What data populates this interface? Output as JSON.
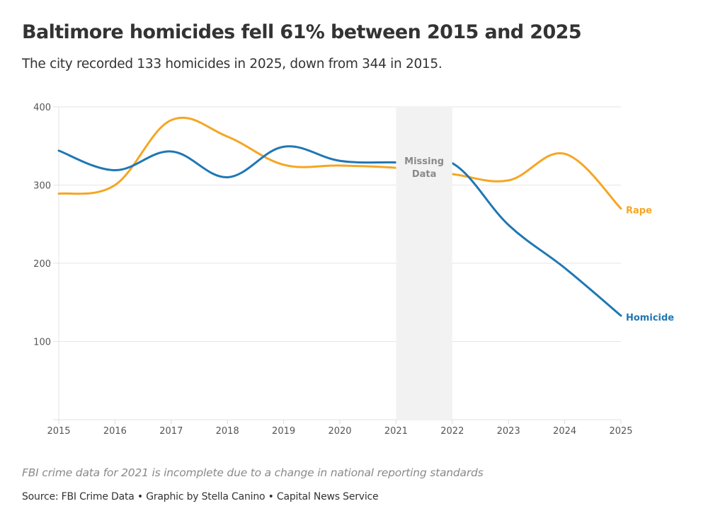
{
  "header": {
    "title": "Baltimore homicides fell 61% between 2015 and 2025",
    "subtitle": "The city recorded 133 homicides in 2025, down from 344 in 2015."
  },
  "footer": {
    "note": "FBI crime data for 2021 is incomplete due to a change in national reporting standards",
    "source": "Source: FBI Crime Data • Graphic by Stella Canino • Capital News Service"
  },
  "chart_data": {
    "type": "line",
    "title": "Baltimore homicides fell 61% between 2015 and 2025",
    "subtitle": "The city recorded 133 homicides in 2025, down from 344 in 2015.",
    "xlabel": "",
    "ylabel": "",
    "x": [
      2015,
      2016,
      2017,
      2018,
      2019,
      2020,
      2021,
      2022,
      2023,
      2024,
      2025
    ],
    "x_tick_labels": [
      "2015",
      "2016",
      "2017",
      "2018",
      "2019",
      "2020",
      "2021",
      "2022",
      "2023",
      "2024",
      "2025"
    ],
    "ylim": [
      0,
      400
    ],
    "y_ticks": [
      100,
      200,
      300,
      400
    ],
    "y_tick_labels": [
      "100",
      "200",
      "300",
      "400"
    ],
    "grid": true,
    "legend": "inline labels at right end of lines",
    "series": [
      {
        "name": "Rape",
        "color": "#f5a623",
        "values": [
          289,
          300,
          383,
          362,
          326,
          325,
          322,
          314,
          306,
          340,
          270
        ]
      },
      {
        "name": "Homicide",
        "color": "#1f77b4",
        "values": [
          344,
          319,
          343,
          310,
          349,
          331,
          329,
          328,
          249,
          194,
          133
        ]
      }
    ],
    "annotations": [
      {
        "type": "shaded-region",
        "x_start": 2021,
        "x_end": 2022,
        "label_lines": [
          "Missing",
          "Data"
        ],
        "color": "#f2f2f2"
      }
    ]
  }
}
